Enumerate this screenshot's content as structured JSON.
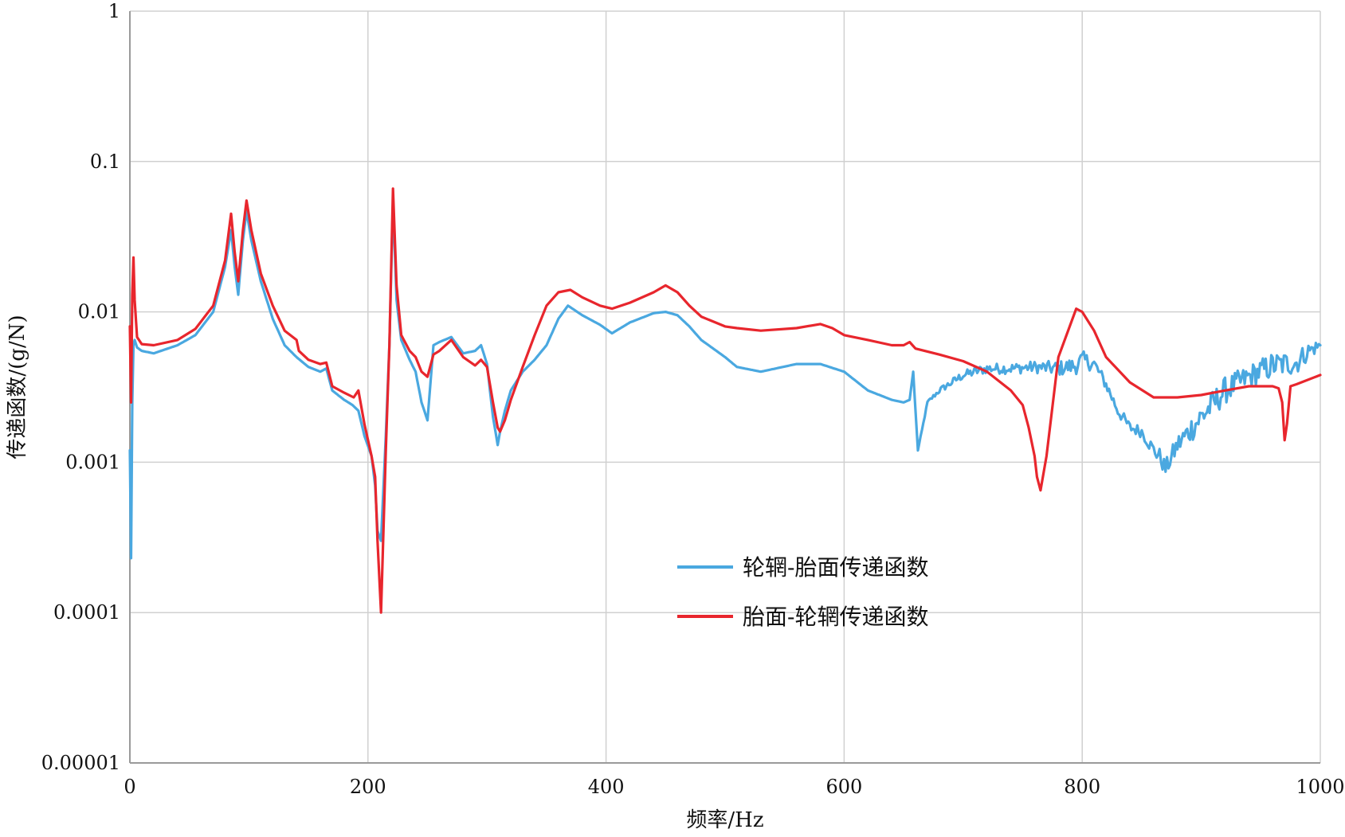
{
  "chart_data": {
    "type": "line",
    "title": "",
    "xlabel": "频率/Hz",
    "ylabel": "传递函数/(g/N)",
    "xlim": [
      0,
      1000
    ],
    "ylim": [
      1e-05,
      1
    ],
    "yscale": "log",
    "grid": true,
    "legend_position": "center",
    "x_ticks": [
      {
        "value": 0,
        "label": "0"
      },
      {
        "value": 200,
        "label": "200"
      },
      {
        "value": 400,
        "label": "400"
      },
      {
        "value": 600,
        "label": "600"
      },
      {
        "value": 800,
        "label": "800"
      },
      {
        "value": 1000,
        "label": "1000"
      }
    ],
    "y_ticks": [
      {
        "value": 1,
        "label": "1"
      },
      {
        "value": 0.1,
        "label": "0.1"
      },
      {
        "value": 0.01,
        "label": "0.01"
      },
      {
        "value": 0.001,
        "label": "0.001"
      },
      {
        "value": 0.0001,
        "label": "0.0001"
      },
      {
        "value": 1e-05,
        "label": "0.00001"
      }
    ],
    "series": [
      {
        "name": "轮辋-胎面传递函数",
        "color": "#4aa8e0",
        "noise": [
          0,
          0,
          0,
          0,
          0,
          0,
          0,
          0,
          0,
          0,
          0,
          0.02,
          0.03,
          0.04,
          0.06,
          0.04,
          0.04,
          0.06,
          0.1,
          0.08,
          0.09,
          0.08,
          0.04
        ],
        "noise_x": [
          0,
          100,
          200,
          300,
          320,
          400,
          500,
          540,
          600,
          640,
          660,
          680,
          700,
          760,
          800,
          820,
          850,
          870,
          900,
          940,
          960,
          980,
          1000
        ],
        "x": [
          0,
          1,
          2,
          3,
          4,
          6,
          10,
          20,
          40,
          55,
          70,
          80,
          85,
          88,
          91,
          95,
          98,
          102,
          110,
          120,
          130,
          140,
          150,
          160,
          165,
          170,
          180,
          187,
          192,
          197,
          203,
          206,
          208,
          211,
          215,
          218,
          221,
          224,
          228,
          235,
          240,
          245,
          250,
          252,
          255,
          260,
          270,
          280,
          290,
          295,
          300,
          305,
          309,
          311,
          315,
          320,
          330,
          340,
          350,
          360,
          368,
          380,
          395,
          405,
          420,
          440,
          450,
          460,
          470,
          480,
          500,
          510,
          530,
          560,
          580,
          600,
          620,
          640,
          650,
          655,
          658,
          662,
          670,
          680,
          700,
          720,
          740,
          760,
          780,
          795,
          800,
          810,
          820,
          830,
          840,
          850,
          860,
          865,
          870,
          880,
          900,
          920,
          940,
          960,
          980,
          990,
          1000
        ],
        "y": [
          0.0012,
          0.00023,
          0.0025,
          0.006,
          0.0065,
          0.0058,
          0.0055,
          0.0053,
          0.006,
          0.007,
          0.01,
          0.02,
          0.035,
          0.02,
          0.013,
          0.03,
          0.047,
          0.03,
          0.016,
          0.009,
          0.006,
          0.005,
          0.0043,
          0.004,
          0.0042,
          0.003,
          0.0026,
          0.0024,
          0.0022,
          0.0015,
          0.0011,
          0.0007,
          0.00035,
          0.0003,
          0.0015,
          0.006,
          0.055,
          0.012,
          0.0065,
          0.0048,
          0.004,
          0.0025,
          0.0019,
          0.003,
          0.006,
          0.0063,
          0.0068,
          0.0053,
          0.0055,
          0.006,
          0.0045,
          0.002,
          0.0013,
          0.0016,
          0.0022,
          0.003,
          0.004,
          0.0048,
          0.006,
          0.009,
          0.011,
          0.0095,
          0.0082,
          0.0072,
          0.0085,
          0.0098,
          0.01,
          0.0095,
          0.008,
          0.0065,
          0.005,
          0.0043,
          0.004,
          0.0045,
          0.0045,
          0.004,
          0.003,
          0.0026,
          0.0025,
          0.0026,
          0.004,
          0.0012,
          0.0025,
          0.003,
          0.0038,
          0.0042,
          0.0042,
          0.0043,
          0.0042,
          0.0044,
          0.0048,
          0.0045,
          0.0033,
          0.0022,
          0.0017,
          0.0016,
          0.0012,
          0.0011,
          0.0009,
          0.0013,
          0.002,
          0.003,
          0.0037,
          0.0044,
          0.0046,
          0.0055,
          0.006
        ]
      },
      {
        "name": "胎面-轮辋传递函数",
        "color": "#e8262d",
        "x": [
          0,
          1,
          2,
          3,
          4,
          6,
          10,
          20,
          40,
          55,
          70,
          80,
          85,
          88,
          91,
          95,
          98,
          102,
          110,
          120,
          130,
          140,
          142,
          150,
          160,
          165,
          170,
          180,
          188,
          192,
          197,
          203,
          206,
          208,
          211,
          215,
          218,
          221,
          224,
          228,
          235,
          240,
          245,
          250,
          255,
          260,
          270,
          280,
          290,
          295,
          300,
          305,
          309,
          311,
          315,
          320,
          330,
          340,
          350,
          360,
          370,
          380,
          395,
          405,
          420,
          440,
          450,
          460,
          470,
          480,
          500,
          510,
          530,
          560,
          580,
          590,
          600,
          620,
          640,
          650,
          655,
          660,
          680,
          700,
          720,
          740,
          750,
          755,
          760,
          762,
          765,
          770,
          780,
          795,
          800,
          810,
          820,
          840,
          860,
          880,
          900,
          920,
          940,
          960,
          965,
          968,
          970,
          972,
          975,
          980,
          1000
        ],
        "y": [
          0.008,
          0.0025,
          0.013,
          0.023,
          0.012,
          0.0068,
          0.0061,
          0.006,
          0.0065,
          0.0077,
          0.011,
          0.022,
          0.045,
          0.025,
          0.016,
          0.035,
          0.055,
          0.035,
          0.018,
          0.011,
          0.0075,
          0.0065,
          0.0055,
          0.0048,
          0.0045,
          0.0046,
          0.0032,
          0.0029,
          0.0027,
          0.003,
          0.0018,
          0.0011,
          0.0008,
          0.0003,
          0.0001,
          0.0012,
          0.006,
          0.066,
          0.015,
          0.007,
          0.0055,
          0.005,
          0.004,
          0.0037,
          0.0052,
          0.0055,
          0.0065,
          0.005,
          0.0044,
          0.0048,
          0.0043,
          0.0025,
          0.0017,
          0.0016,
          0.0019,
          0.0026,
          0.0043,
          0.007,
          0.011,
          0.0135,
          0.014,
          0.0125,
          0.011,
          0.0105,
          0.0115,
          0.0135,
          0.015,
          0.0135,
          0.011,
          0.0093,
          0.008,
          0.0078,
          0.0075,
          0.0078,
          0.0083,
          0.0078,
          0.007,
          0.0065,
          0.006,
          0.006,
          0.0063,
          0.0057,
          0.0052,
          0.0047,
          0.004,
          0.003,
          0.0024,
          0.0017,
          0.0011,
          0.0008,
          0.00065,
          0.0011,
          0.005,
          0.0105,
          0.01,
          0.0075,
          0.005,
          0.0034,
          0.0027,
          0.0027,
          0.0028,
          0.003,
          0.0032,
          0.0032,
          0.0031,
          0.0025,
          0.0014,
          0.0018,
          0.0032,
          0.0033,
          0.0038
        ]
      }
    ]
  }
}
